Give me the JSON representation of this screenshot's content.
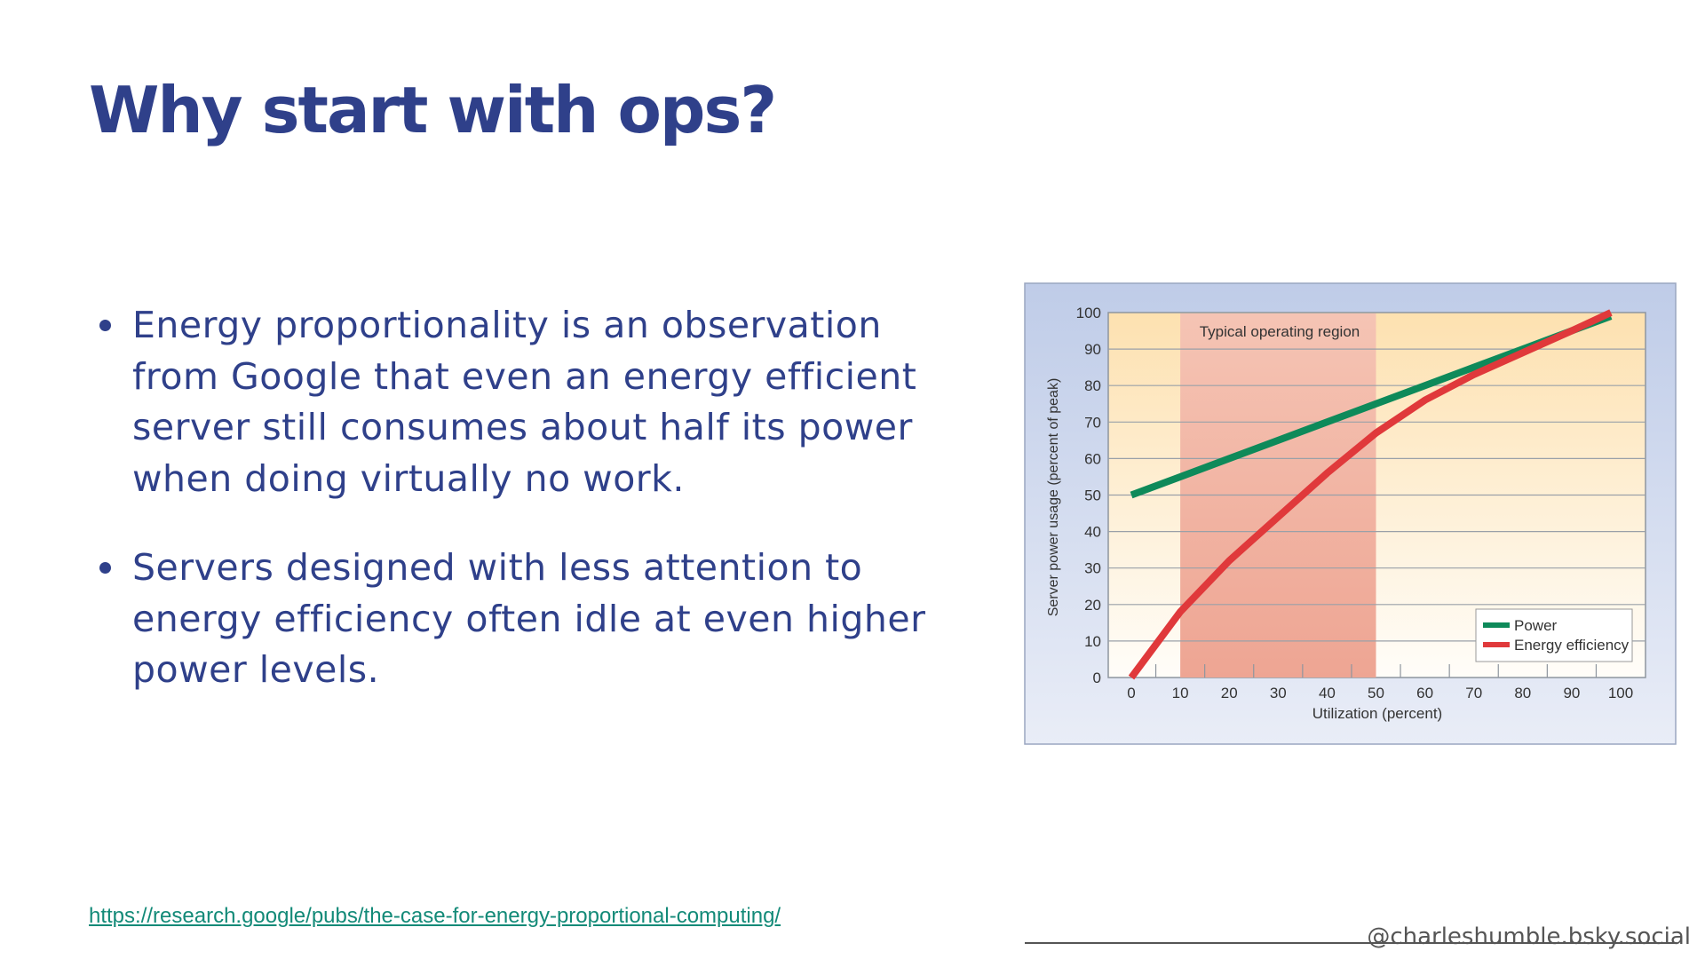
{
  "slide": {
    "title": "Why start with ops?",
    "bullets": [
      "Energy proportionality is an observation from Google that even an energy efficient server still consumes about half its power when doing virtually no work.",
      "Servers designed with less attention to energy efficiency often idle at even higher power levels."
    ],
    "link": "https://research.google/pubs/the-case-for-energy-proportional-computing/",
    "handle": "@charleshumble.bsky.social"
  },
  "colors": {
    "title": "#2f408a",
    "power": "#0e8a5a",
    "efficiency": "#e0393b",
    "link": "#138a78"
  },
  "chart_data": {
    "type": "line",
    "xlabel": "Utilization (percent)",
    "ylabel": "Server power usage (percent of peak)",
    "xlim": [
      0,
      100
    ],
    "ylim": [
      0,
      100
    ],
    "xticks": [
      0,
      10,
      20,
      30,
      40,
      50,
      60,
      70,
      80,
      90,
      100
    ],
    "yticks": [
      0,
      10,
      20,
      30,
      40,
      50,
      60,
      70,
      80,
      90,
      100
    ],
    "grid": true,
    "legend": "bottom-right",
    "annotation": {
      "text": "Typical operating region",
      "x_range": [
        10,
        50
      ]
    },
    "x": [
      0,
      10,
      20,
      30,
      40,
      50,
      60,
      70,
      80,
      90,
      98
    ],
    "series": [
      {
        "name": "Power",
        "color": "#0e8a5a",
        "values": [
          50,
          55,
          60,
          65,
          70,
          75,
          80,
          85,
          90,
          95,
          99
        ]
      },
      {
        "name": "Energy efficiency",
        "color": "#e0393b",
        "values": [
          0,
          18,
          32,
          44,
          56,
          67,
          76,
          83,
          89,
          95,
          100
        ]
      }
    ]
  }
}
